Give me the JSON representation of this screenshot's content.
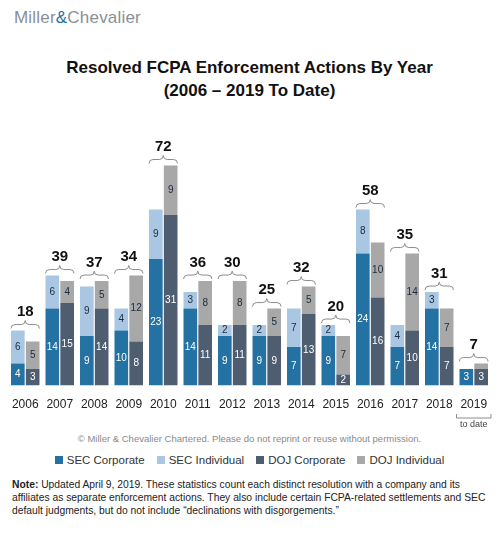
{
  "logo": "Miller&Chevalier",
  "chart_data": {
    "type": "bar",
    "title": [
      "Resolved FCPA Enforcement Actions By Year",
      "(2006 – 2019 To Date)"
    ],
    "categories": [
      "2006",
      "2007",
      "2008",
      "2009",
      "2010",
      "2011",
      "2012",
      "2013",
      "2014",
      "2015",
      "2016",
      "2017",
      "2018",
      "2019"
    ],
    "series": [
      {
        "name": "SEC Corporate",
        "color": "#2471a3",
        "values": [
          4,
          14,
          9,
          10,
          23,
          14,
          9,
          9,
          7,
          9,
          24,
          7,
          14,
          3
        ]
      },
      {
        "name": "SEC Individual",
        "color": "#a9c7e2",
        "values": [
          6,
          6,
          9,
          4,
          9,
          3,
          2,
          2,
          7,
          2,
          8,
          4,
          3,
          0
        ],
        "value_labels": [
          "6",
          "6",
          "9",
          "4",
          "9",
          "3",
          "2",
          "2",
          "7",
          "2",
          "8",
          "4",
          "3",
          null
        ]
      },
      {
        "name": "DOJ Corporate",
        "color": "#4f5d70",
        "values": [
          3,
          15,
          14,
          8,
          31,
          11,
          11,
          9,
          13,
          2,
          16,
          10,
          7,
          3
        ]
      },
      {
        "name": "DOJ Individual",
        "color": "#a8a8a8",
        "values": [
          5,
          4,
          5,
          12,
          9,
          8,
          8,
          5,
          5,
          7,
          10,
          14,
          7,
          1
        ],
        "value_labels": [
          "5",
          "4",
          "5",
          "12",
          "9",
          "8",
          "8",
          "5",
          "5",
          "7",
          "10",
          "14",
          "7",
          null
        ]
      }
    ],
    "totals": [
      18,
      39,
      37,
      34,
      72,
      36,
      30,
      25,
      32,
      20,
      58,
      35,
      31,
      7
    ],
    "annotations": [
      {
        "category": "2019",
        "text": "to date"
      }
    ],
    "stacked": true,
    "data_labels": true,
    "tick_labels": "x",
    "grid": false,
    "legend": "bottom"
  },
  "footer": {
    "copyright": "© Miller & Chevalier Chartered. Please do not reprint or reuse without permission.",
    "note_label": "Note:",
    "note": "Updated April 9, 2019. These statistics count each distinct resolution with a company and its affiliates as separate enforcement actions. They also include certain FCPA-related settlements and SEC default judgments, but do not include “declinations with disgorgements.”"
  }
}
